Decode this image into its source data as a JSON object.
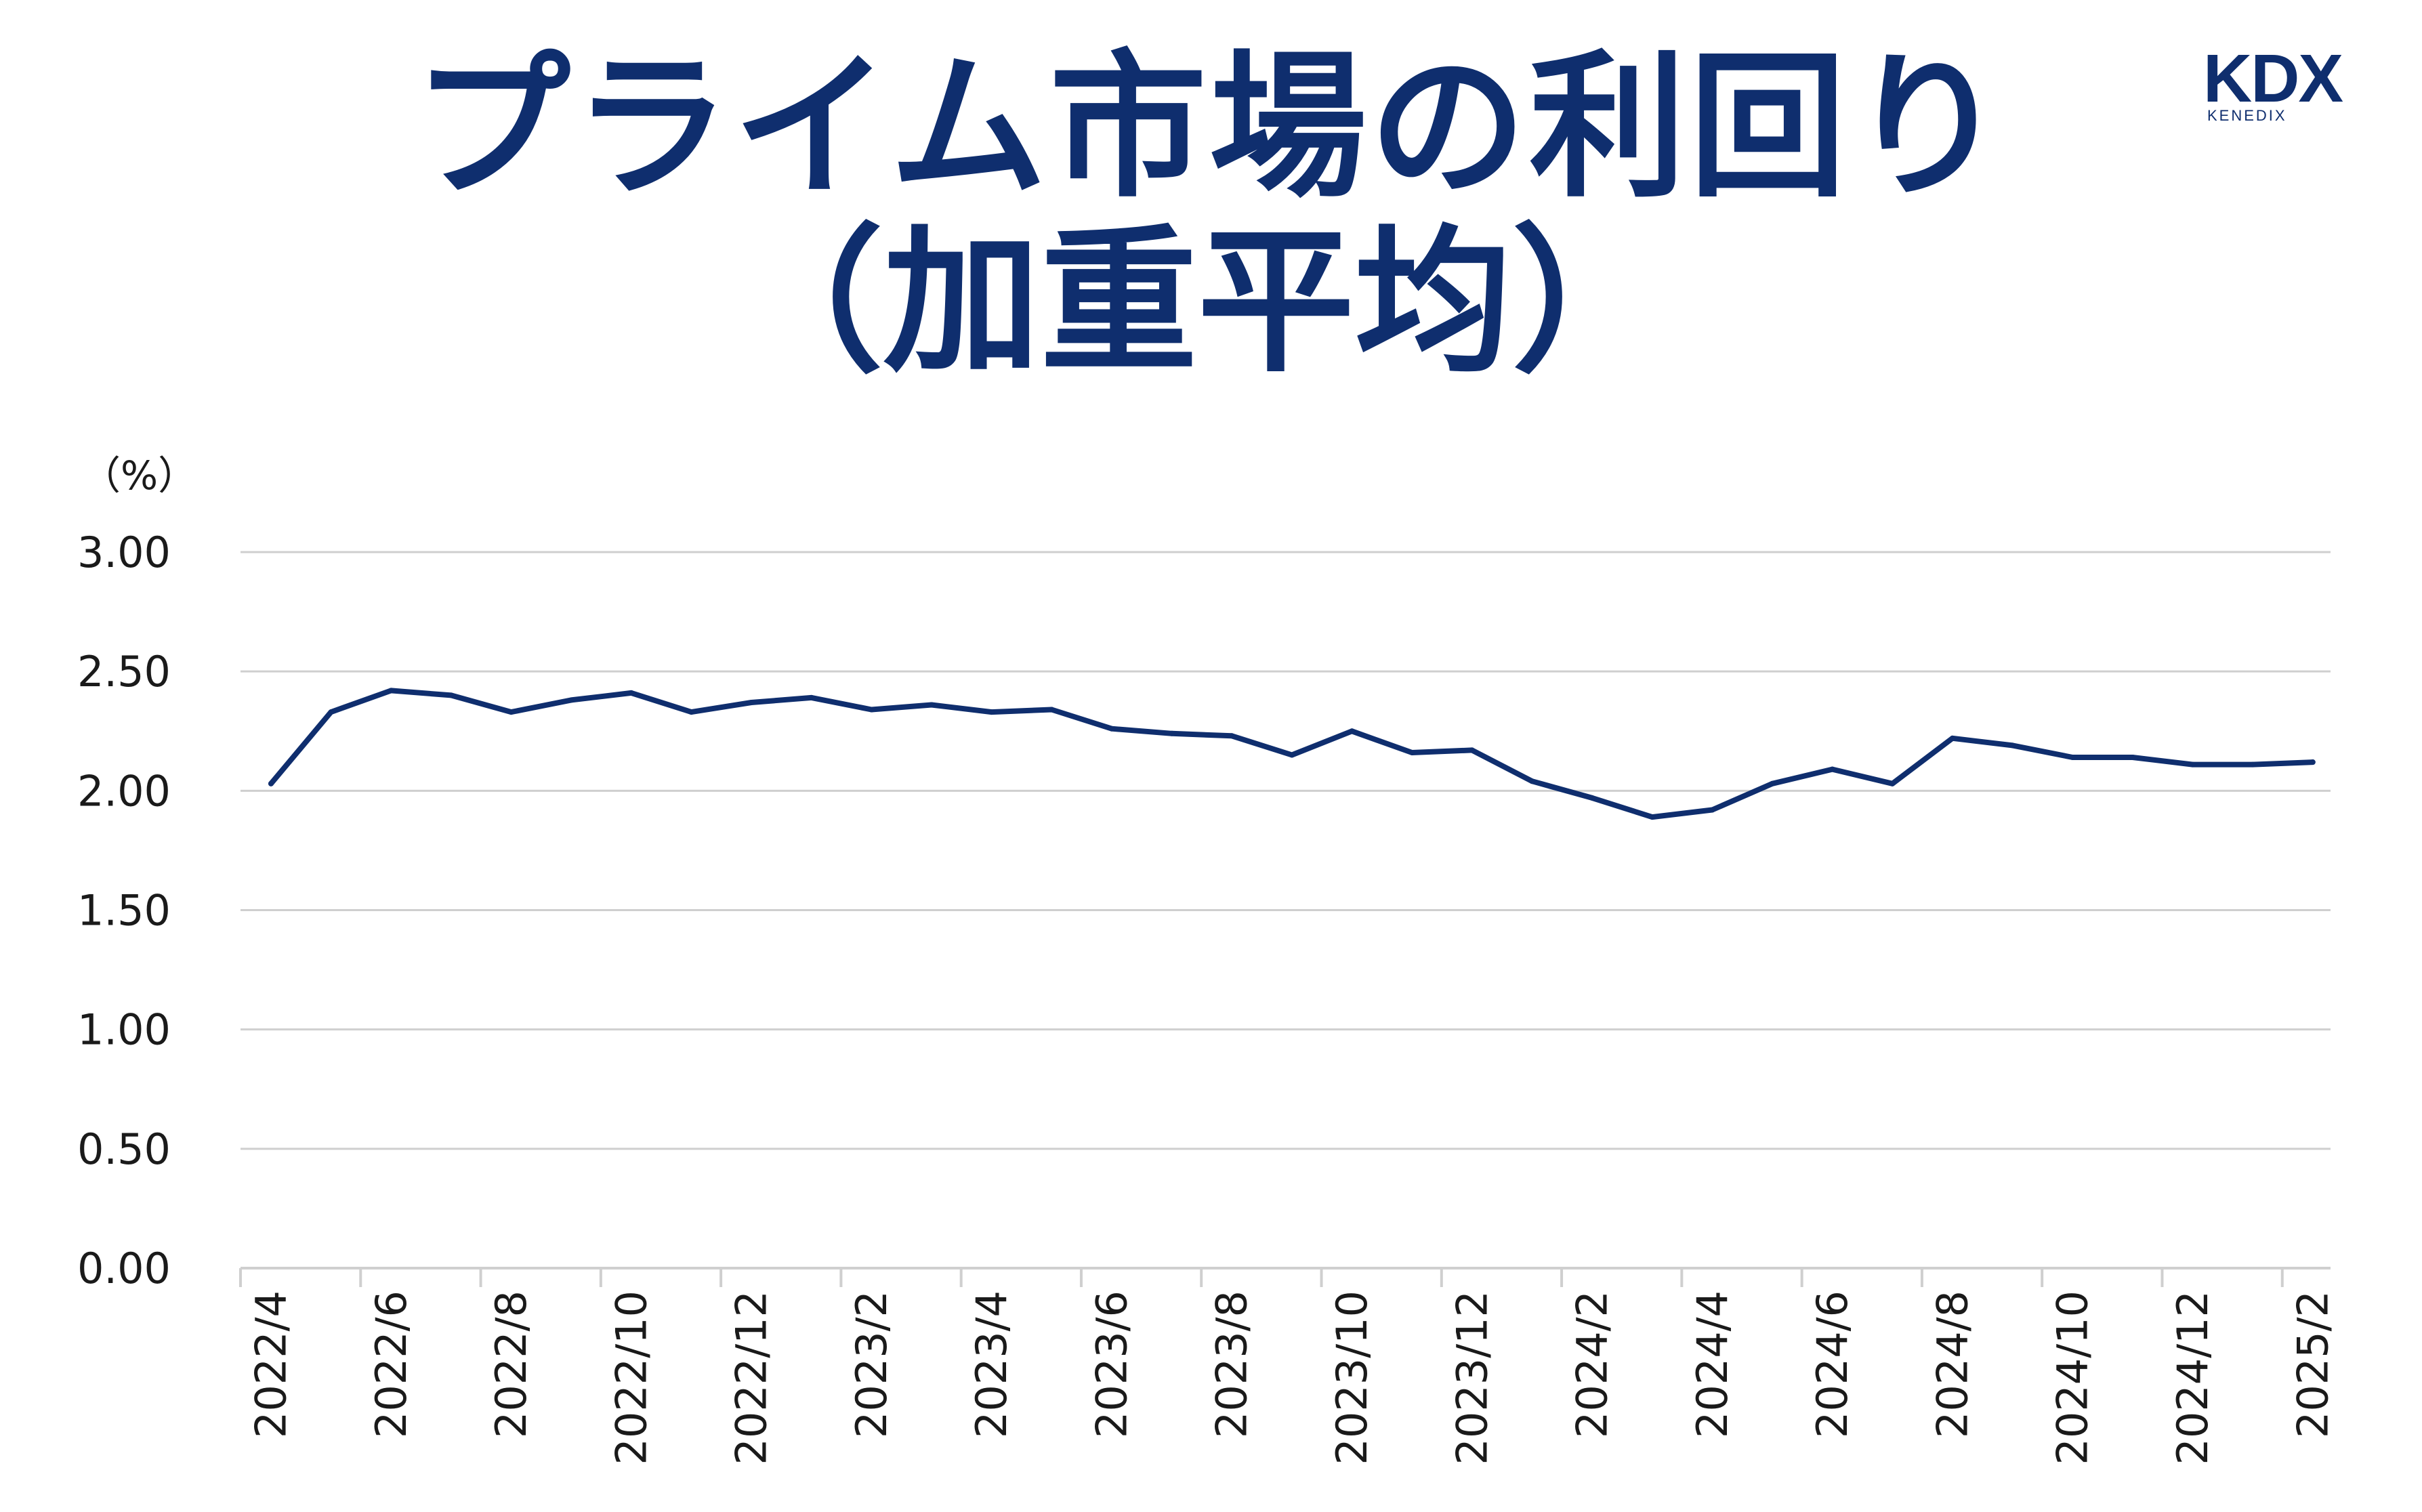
{
  "title": {
    "line1": "プライム市場の利回り",
    "line2": "（加重平均）"
  },
  "logo": {
    "main": "KDX",
    "sub": "KENEDIX"
  },
  "colors": {
    "title": "#0f2e6e",
    "line": "#0f2e6e",
    "grid": "#cfcfcf",
    "text": "#1a1a1a"
  },
  "chart_data": {
    "type": "line",
    "y_unit": "（%）",
    "ylim": [
      0,
      3
    ],
    "y_ticks": [
      "3.00",
      "2.50",
      "2.00",
      "1.50",
      "1.00",
      "0.50",
      "0.00"
    ],
    "grid": "horizontal",
    "x_tick_labels": [
      "2022/4",
      "2022/6",
      "2022/8",
      "2022/10",
      "2022/12",
      "2023/2",
      "2023/4",
      "2023/6",
      "2023/8",
      "2023/10",
      "2023/12",
      "2024/2",
      "2024/4",
      "2024/6",
      "2024/8",
      "2024/10",
      "2024/12",
      "2025/2"
    ],
    "x": [
      "2022/4",
      "2022/5",
      "2022/6",
      "2022/7",
      "2022/8",
      "2022/9",
      "2022/10",
      "2022/11",
      "2022/12",
      "2023/1",
      "2023/2",
      "2023/3",
      "2023/4",
      "2023/5",
      "2023/6",
      "2023/7",
      "2023/8",
      "2023/9",
      "2023/10",
      "2023/11",
      "2023/12",
      "2024/1",
      "2024/2",
      "2024/3",
      "2024/4",
      "2024/5",
      "2024/6",
      "2024/7",
      "2024/8",
      "2024/9",
      "2024/10",
      "2024/11",
      "2024/12",
      "2025/1",
      "2025/2"
    ],
    "values": [
      2.03,
      2.33,
      2.42,
      2.4,
      2.33,
      2.38,
      2.41,
      2.33,
      2.37,
      2.39,
      2.34,
      2.36,
      2.33,
      2.34,
      2.26,
      2.24,
      2.23,
      2.15,
      2.25,
      2.16,
      2.17,
      2.04,
      1.97,
      1.89,
      1.92,
      2.03,
      2.09,
      2.03,
      2.22,
      2.19,
      2.14,
      2.14,
      2.11,
      2.11,
      2.12
    ]
  }
}
